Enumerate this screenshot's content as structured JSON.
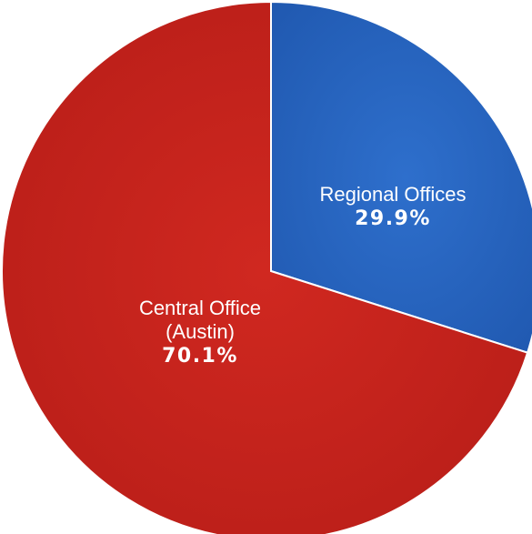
{
  "chart_data": {
    "type": "pie",
    "start_angle_deg": 0,
    "direction": "clockwise",
    "slices": [
      {
        "label_lines": [
          "Regional Offices"
        ],
        "value": 29.9,
        "percent_label": "29.9%",
        "color": "#2E6FCC",
        "color_dark": "#1F57AE"
      },
      {
        "label_lines": [
          "Central Office",
          "(Austin)"
        ],
        "value": 70.1,
        "percent_label": "70.1%",
        "color": "#D02820",
        "color_dark": "#B41C17"
      }
    ]
  }
}
